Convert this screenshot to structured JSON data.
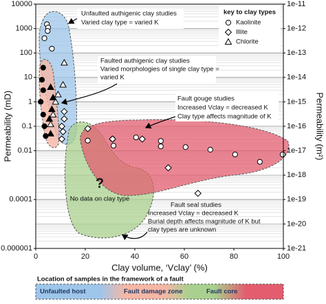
{
  "chart_data": {
    "type": "scatter",
    "x_label": "Clay volume, ‘Vclay’ (%)",
    "y_label": "Permeability (mD)",
    "y2_label": "Permeability (m²)",
    "xlim": [
      0,
      100
    ],
    "xticks": [
      0,
      20,
      40,
      60,
      80,
      100
    ],
    "ylim": [
      1e-06,
      10000
    ],
    "yticks": [
      10000,
      1000,
      100,
      10,
      1,
      0.1,
      0.01,
      0.0001,
      1e-06
    ],
    "y2lim": [
      1e-21,
      1e-11
    ],
    "y2ticks": [
      1e-11,
      1e-12,
      1e-13,
      1e-14,
      1e-15,
      1e-16,
      1e-17,
      1e-18,
      1e-19,
      1e-20,
      1e-21
    ],
    "log_y": true,
    "grid": true,
    "legend_title": "key to clay types",
    "legend_position": "upper right",
    "series": [
      {
        "name": "Kaolinite",
        "marker": "circle",
        "filled": false,
        "color": "#000000",
        "x": [
          4.5,
          5,
          4.8,
          3.5,
          6.5,
          21,
          31,
          31.4,
          40.5,
          50.5,
          50.5,
          60.5,
          70.5,
          80.5,
          90.5,
          99.7
        ],
        "values": [
          1500,
          1100,
          800,
          400,
          150,
          0.026,
          0.03,
          0.016,
          0.035,
          0.025,
          0.015,
          0.014,
          0.011,
          0.007,
          0.0035,
          0.007
        ]
      },
      {
        "name": "Illite",
        "marker": "diamond",
        "filled": false,
        "color": "#000000",
        "x": [
          11.5,
          11.5,
          10.5,
          11,
          10.5,
          21,
          31,
          43,
          53.5,
          65.5
        ],
        "values": [
          0.4,
          0.2,
          0.1,
          0.06,
          0.03,
          0.08,
          0.03,
          0.03,
          0.002,
          0.00018
        ]
      },
      {
        "name": "Chlorite",
        "marker": "triangle",
        "filled": false,
        "color": "#000000",
        "x": [
          11.5,
          11,
          9,
          8,
          7,
          6
        ],
        "values": [
          40,
          5,
          2,
          1,
          0.3,
          0.12
        ]
      },
      {
        "marker": "circle",
        "filled": true,
        "color": "#000000",
        "x": [
          3,
          2.5,
          3,
          2,
          3,
          3.5,
          4
        ],
        "values": [
          25,
          8,
          3,
          1,
          0.3,
          0.1,
          0.04
        ]
      },
      {
        "marker": "triangle",
        "filled": true,
        "color": "#000000",
        "x": [
          6,
          7,
          6.5,
          5.5,
          6
        ],
        "values": [
          4,
          1.5,
          0.5,
          0.2,
          0.05
        ]
      }
    ],
    "annotations": [
      {
        "lines": [
          "Unfaulted authigenic clay studies",
          "Varied clay type = varied K"
        ]
      },
      {
        "lines": [
          "Faulted authigenic clay studies",
          "Varied morphologies of single clay type =",
          "varied K"
        ]
      },
      {
        "lines": [
          "Fault gouge studies",
          "Increased Vclay = decreased K",
          "Clay type affects magnitude of K"
        ]
      },
      {
        "lines": [
          "Fault seal studies",
          "Increased Vclay = decreased K",
          "Burial depth affects magnitude of K but",
          "clay types are unknown"
        ]
      },
      {
        "lines": [
          "?",
          "No data on clay type"
        ]
      }
    ],
    "framework_title": "Location of samples in the framework of a fault",
    "framework_labels": [
      "Unfaulted host",
      "Fault damage zone",
      "Fault core"
    ]
  }
}
